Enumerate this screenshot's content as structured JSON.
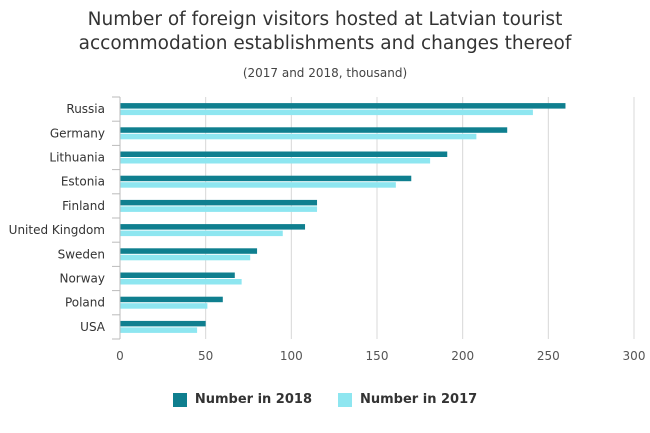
{
  "chart_data": {
    "type": "bar",
    "orientation": "horizontal",
    "title_lines": [
      "Number of foreign visitors hosted at Latvian tourist",
      "accommodation establishments and changes thereof"
    ],
    "subtitle": "(2017 and 2018, thousand)",
    "categories": [
      "Russia",
      "Germany",
      "Lithuania",
      "Estonia",
      "Finland",
      "United Kingdom",
      "Sweden",
      "Norway",
      "Poland",
      "USA"
    ],
    "series": [
      {
        "name": "Number in 2018",
        "color": "#0f7f8f",
        "values": [
          260,
          226,
          191,
          170,
          115,
          108,
          80,
          67,
          60,
          50
        ]
      },
      {
        "name": "Number in 2017",
        "color": "#8ee6f0",
        "values": [
          241,
          208,
          181,
          161,
          115,
          95,
          76,
          71,
          51,
          45
        ]
      }
    ],
    "xlim": [
      0,
      300
    ],
    "xticks": [
      "0",
      "50",
      "100",
      "150",
      "200",
      "250",
      "300"
    ],
    "grid": true,
    "legend_position": "bottom"
  }
}
